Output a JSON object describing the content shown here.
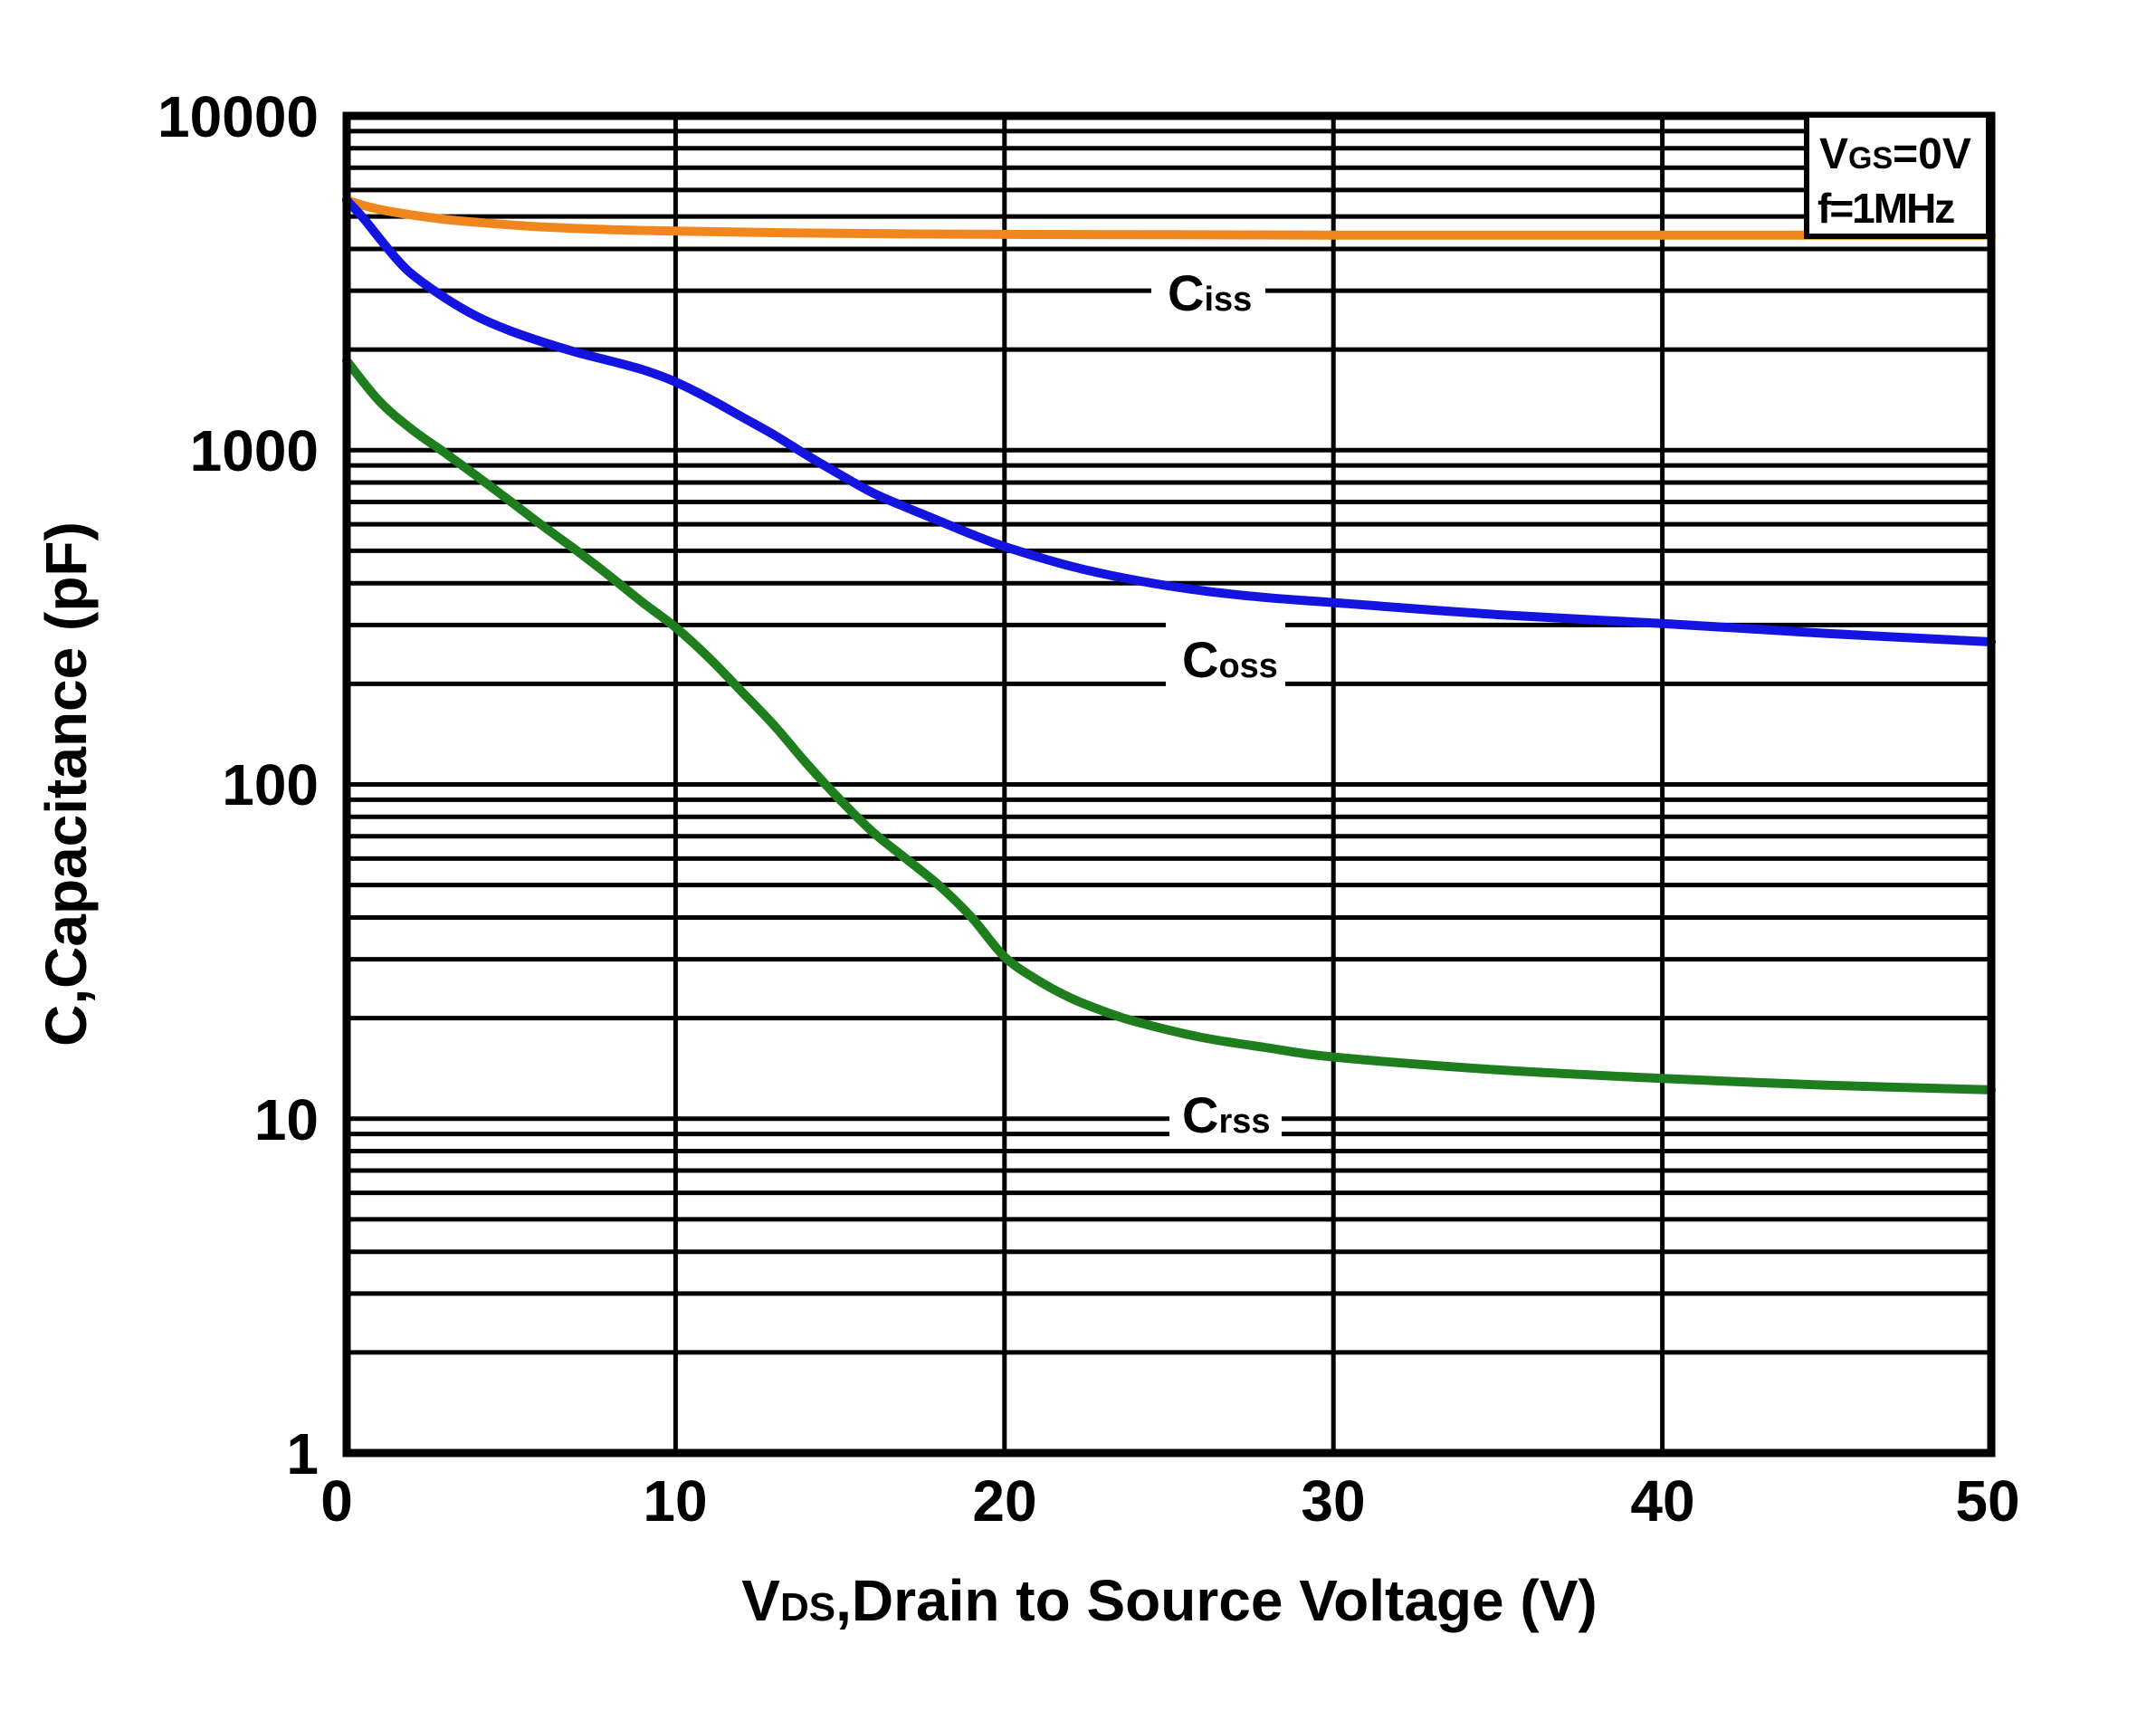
{
  "chart_data": {
    "type": "line",
    "title": "",
    "xlabel": "VDS,Drain to Source Voltage (V)",
    "xlabel_parts": {
      "main": "V",
      "sub": "DS",
      "rest": ",Drain to Source Voltage (V)"
    },
    "ylabel": "C,Capacitance (pF)",
    "x_axis": {
      "min": 0,
      "max": 50,
      "ticks": [
        0,
        10,
        20,
        30,
        40,
        50
      ],
      "tick_labels": [
        "0",
        "10",
        "20",
        "30",
        "40",
        "50"
      ],
      "major_gridline_step": 10
    },
    "y_axis": {
      "scale": "log",
      "min": 1,
      "max": 10000,
      "ticks": [
        10000,
        1000,
        100,
        10,
        1
      ],
      "tick_labels": [
        "10000",
        "1000",
        "100",
        "10",
        "1"
      ],
      "minor_gridlines": true,
      "unit": "pF"
    },
    "grid": "on",
    "legend_position": "labels-on-curves",
    "conditions": {
      "line1": "VGS=0V",
      "line1_parts": {
        "main": "V",
        "sub": "GS",
        "rest": "=0V"
      },
      "line2": "f=1MHz"
    },
    "series": [
      {
        "name": "Ciss",
        "label_main": "C",
        "label_sub": "iss",
        "color": "#F0861D",
        "x": [
          0,
          0.5,
          1,
          2,
          3,
          4,
          6,
          8,
          10,
          15,
          20,
          25,
          30,
          35,
          40,
          45,
          50
        ],
        "y": [
          5600,
          5400,
          5250,
          5050,
          4900,
          4800,
          4650,
          4570,
          4520,
          4450,
          4420,
          4410,
          4400,
          4400,
          4400,
          4400,
          4400
        ]
      },
      {
        "name": "Coss",
        "label_main": "C",
        "label_sub": "oss",
        "color": "#1414E0",
        "x": [
          0,
          0.5,
          1,
          1.5,
          2,
          3,
          4,
          5,
          6,
          7,
          8,
          9,
          10,
          11,
          12,
          13,
          14,
          15,
          16,
          17,
          18,
          19,
          20,
          22,
          24,
          26,
          28,
          30,
          35,
          40,
          45,
          50
        ],
        "y": [
          5600,
          4950,
          4300,
          3750,
          3350,
          2850,
          2500,
          2270,
          2100,
          1960,
          1850,
          1740,
          1600,
          1430,
          1260,
          1110,
          965,
          845,
          745,
          675,
          615,
          560,
          515,
          450,
          408,
          380,
          362,
          350,
          322,
          303,
          283,
          267
        ]
      },
      {
        "name": "Crss",
        "label_main": "C",
        "label_sub": "rss",
        "color": "#1E7E1E",
        "x": [
          0,
          1,
          2,
          3,
          4,
          5,
          6,
          7,
          8,
          9,
          10,
          11,
          12,
          13,
          14,
          15,
          16,
          17,
          18,
          19,
          20,
          21,
          22,
          23,
          24,
          26,
          28,
          30,
          35,
          40,
          45,
          50
        ],
        "y": [
          1850,
          1400,
          1150,
          980,
          830,
          700,
          590,
          500,
          420,
          350,
          295,
          240,
          190,
          150,
          115,
          90,
          72,
          60,
          50,
          40,
          30.5,
          26,
          23,
          21,
          19.5,
          17.5,
          16.3,
          15.3,
          14,
          13.2,
          12.6,
          12.2
        ]
      }
    ]
  }
}
